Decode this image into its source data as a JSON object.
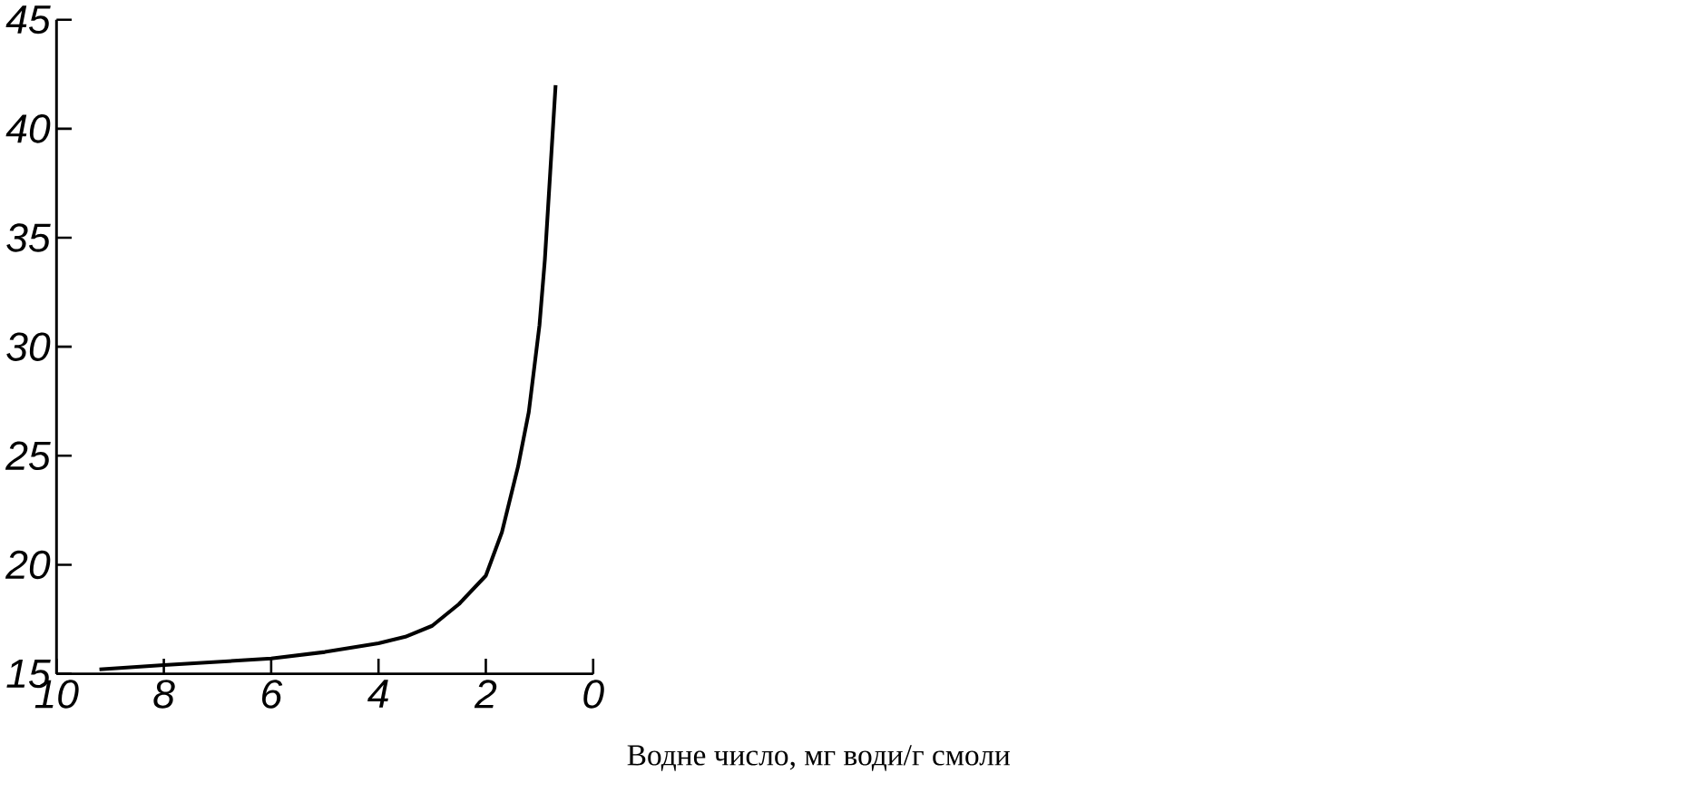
{
  "chart_data": {
    "type": "line",
    "xlabel": "Водне число, мг води/г смоли",
    "x": [
      9.2,
      8,
      6,
      5,
      4,
      3.5,
      3,
      2.5,
      2,
      1.7,
      1.4,
      1.2,
      1.0,
      0.9,
      0.8,
      0.7
    ],
    "series": [
      {
        "color": "#000000",
        "values": [
          15.2,
          15.4,
          15.7,
          16.0,
          16.4,
          16.7,
          17.2,
          18.2,
          19.5,
          21.5,
          24.5,
          27,
          31,
          34,
          38,
          42
        ]
      }
    ],
    "xlim": [
      10,
      0
    ],
    "ylim": [
      15,
      45
    ],
    "xticks": [
      10,
      8,
      6,
      4,
      2,
      0
    ],
    "yticks": [
      15,
      20,
      25,
      30,
      35,
      40,
      45
    ],
    "grid": false,
    "marker": "none",
    "line_style": "solid"
  }
}
